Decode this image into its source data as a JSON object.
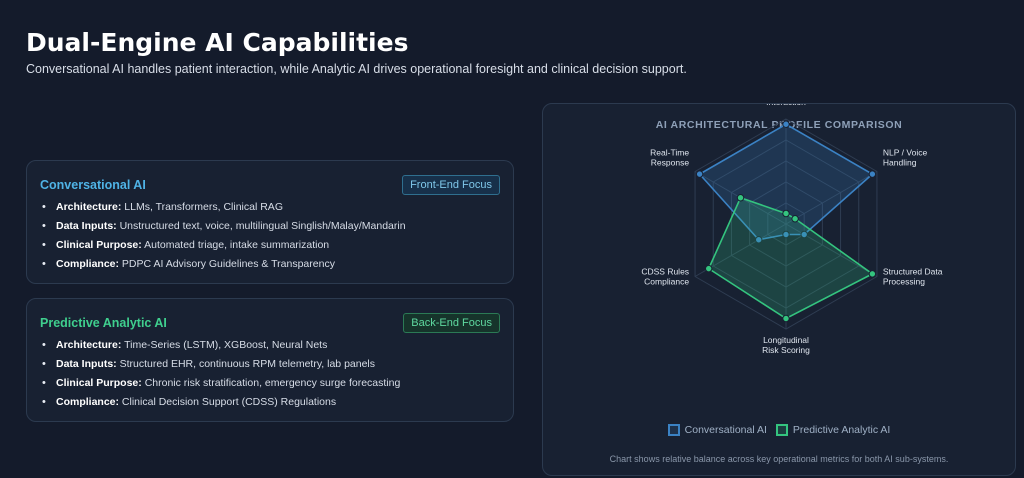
{
  "header": {
    "title": "Dual-Engine AI Capabilities",
    "subtitle": "Conversational AI handles patient interaction, while Analytic AI drives operational foresight and clinical decision support."
  },
  "cards": [
    {
      "title": "Conversational AI",
      "badge": "Front-End Focus",
      "items": [
        {
          "label": "Architecture:",
          "text": " LLMs, Transformers, Clinical RAG"
        },
        {
          "label": "Data Inputs:",
          "text": " Unstructured text, voice, multilingual Singlish/Malay/Mandarin"
        },
        {
          "label": "Clinical Purpose:",
          "text": " Automated triage, intake summarization"
        },
        {
          "label": "Compliance:",
          "text": " PDPC AI Advisory Guidelines & Transparency"
        }
      ]
    },
    {
      "title": "Predictive Analytic AI",
      "badge": "Back-End Focus",
      "items": [
        {
          "label": "Architecture:",
          "text": " Time-Series (LSTM), XGBoost, Neural Nets"
        },
        {
          "label": "Data Inputs:",
          "text": " Structured EHR, continuous RPM telemetry, lab panels"
        },
        {
          "label": "Clinical Purpose:",
          "text": " Chronic risk stratification, emergency surge forecasting"
        },
        {
          "label": "Compliance:",
          "text": " Clinical Decision Support (CDSS) Regulations"
        }
      ]
    }
  ],
  "chart_data": {
    "type": "radar",
    "title": "AI ARCHITECTURAL PROFILE COMPARISON",
    "axes": [
      "Front-End Interaction",
      "NLP / Voice Handling",
      "Structured Data Processing",
      "Longitudinal Risk Scoring",
      "CDSS Rules Compliance",
      "Real-Time Response"
    ],
    "axis_label_lines": [
      [
        "Front-End",
        "Interaction"
      ],
      [
        "NLP / Voice",
        "Handling"
      ],
      [
        "Structured Data",
        "Processing"
      ],
      [
        "Longitudinal",
        "Risk Scoring"
      ],
      [
        "CDSS Rules",
        "Compliance"
      ],
      [
        "Real-Time",
        "Response"
      ]
    ],
    "range": [
      0,
      100
    ],
    "grid": true,
    "series": [
      {
        "name": "Conversational AI",
        "color": "#3b82c4",
        "values": [
          95,
          95,
          20,
          10,
          30,
          95
        ]
      },
      {
        "name": "Predictive Analytic AI",
        "color": "#34c47f",
        "values": [
          10,
          10,
          95,
          90,
          85,
          50
        ]
      }
    ],
    "legend_position": "bottom",
    "footnote": "Chart shows relative balance across key operational metrics for both AI sub-systems."
  }
}
